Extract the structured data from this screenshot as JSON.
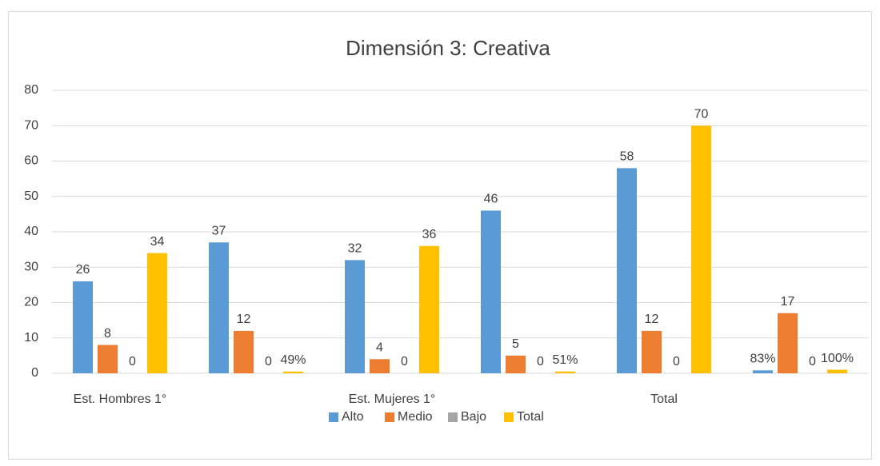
{
  "chart_data": {
    "type": "bar",
    "title": "Dimensión 3: Creativa",
    "categories": [
      "Est. Hombres 1°",
      null,
      "Est. Mujeres 1°",
      null,
      "Total",
      null
    ],
    "series": [
      {
        "name": "Alto",
        "color": "#5b9bd5",
        "values": [
          26,
          37,
          32,
          46,
          58,
          0.83
        ],
        "value_labels": [
          "26",
          "37",
          "32",
          "46",
          "58",
          "83%"
        ]
      },
      {
        "name": "Medio",
        "color": "#ed7d31",
        "values": [
          8,
          12,
          4,
          5,
          12,
          17
        ]
      },
      {
        "name": "Bajo",
        "color": "#a5a5a5",
        "values": [
          0,
          0,
          0,
          0,
          0,
          0
        ]
      },
      {
        "name": "Total",
        "color": "#ffc000",
        "values": [
          34,
          0.49,
          36,
          0.51,
          70,
          1
        ],
        "value_labels": [
          "34",
          "49%",
          "36",
          "51%",
          "70",
          "100%"
        ]
      }
    ],
    "ylim": [
      0,
      80
    ],
    "yticks": [
      0,
      10,
      20,
      30,
      40,
      50,
      60,
      70,
      80
    ],
    "grid": true,
    "legend": "bottom"
  }
}
